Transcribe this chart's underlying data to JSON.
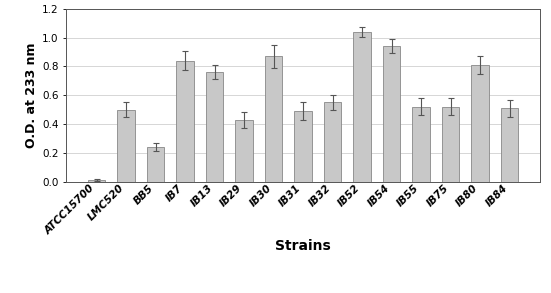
{
  "categories": [
    "ATCC15700",
    "LMC520",
    "BB5",
    "IB7",
    "IB13",
    "IB29",
    "IB30",
    "IB31",
    "IB32",
    "IB52",
    "IB54",
    "IB55",
    "IB75",
    "IB80",
    "IB84"
  ],
  "values": [
    0.01,
    0.5,
    0.24,
    0.84,
    0.76,
    0.43,
    0.87,
    0.49,
    0.55,
    1.04,
    0.94,
    0.52,
    0.52,
    0.81,
    0.51
  ],
  "errors": [
    0.005,
    0.05,
    0.025,
    0.065,
    0.05,
    0.055,
    0.08,
    0.06,
    0.05,
    0.035,
    0.05,
    0.06,
    0.06,
    0.06,
    0.06
  ],
  "bar_color": "#c8c8c8",
  "bar_edgecolor": "#888888",
  "error_color": "#555555",
  "xlabel": "Strains",
  "ylabel": "O.D. at 233 nm",
  "ylim": [
    0,
    1.2
  ],
  "yticks": [
    0.0,
    0.2,
    0.4,
    0.6,
    0.8,
    1.0,
    1.2
  ],
  "xlabel_fontsize": 10,
  "ylabel_fontsize": 9,
  "tick_fontsize": 7.5,
  "xtick_fontsize": 7.5,
  "background_color": "#ffffff"
}
